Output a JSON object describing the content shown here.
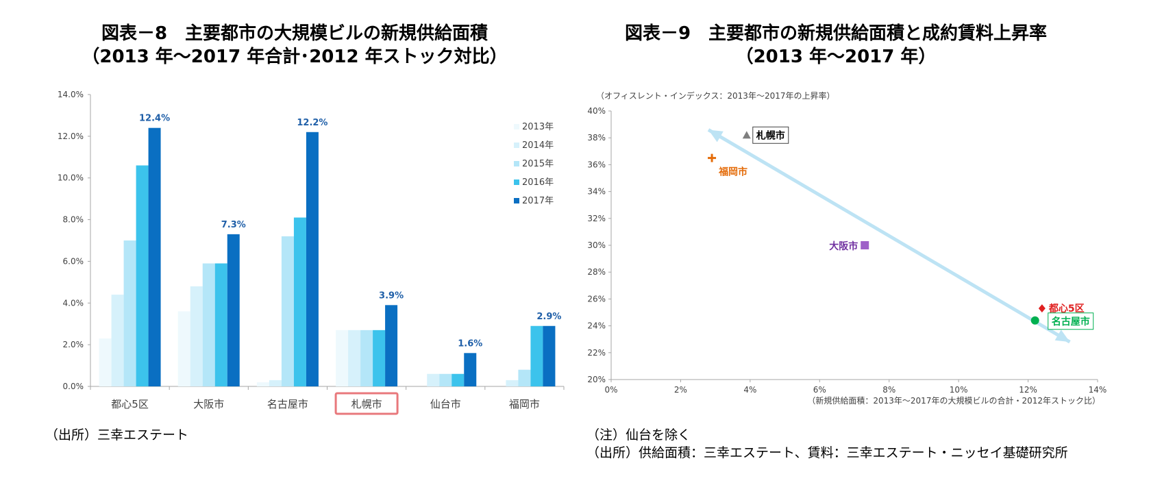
{
  "figures": {
    "left": {
      "title_line1": "図表－8　主要都市の大規模ビルの新規供給面積",
      "title_line2": "（2013 年～2017 年合計･2012 年ストック対比）",
      "source": "（出所）三幸エステート"
    },
    "right": {
      "title_line1": "図表－9　主要都市の新規供給面積と成約賃料上昇率",
      "title_line2": "（2013 年～2017 年）",
      "y_caption": "（オフィスレント・インデックス：2013年～2017年の上昇率）",
      "x_caption": "（新規供給面積：2013年～2017年の大規模ビルの合計・2012年ストック比）",
      "note": "（注）仙台を除く",
      "source": "（出所）供給面積：三幸エステート、賃料：三幸エステート・ニッセイ基礎研究所"
    }
  },
  "chart_data": [
    {
      "type": "bar",
      "title": "図表－8　主要都市の大規模ビルの新規供給面積（2013 年～2017 年合計･2012 年ストック対比）",
      "categories": [
        "都心5区",
        "大阪市",
        "名古屋市",
        "札幌市",
        "仙台市",
        "福岡市"
      ],
      "highlight_category": "札幌市",
      "series": [
        {
          "name": "2013年",
          "color": "#eef9fd",
          "values": [
            2.3,
            3.6,
            0.2,
            2.7,
            0.0,
            0.0
          ]
        },
        {
          "name": "2014年",
          "color": "#d6f1fb",
          "values": [
            4.4,
            4.8,
            0.3,
            2.7,
            0.6,
            0.3
          ]
        },
        {
          "name": "2015年",
          "color": "#b4e6f8",
          "values": [
            7.0,
            5.9,
            7.2,
            2.7,
            0.6,
            0.8
          ]
        },
        {
          "name": "2016年",
          "color": "#3cc3ec",
          "values": [
            10.6,
            5.9,
            8.1,
            2.7,
            0.6,
            2.9
          ]
        },
        {
          "name": "2017年",
          "color": "#0a6fc2",
          "values": [
            12.4,
            7.3,
            12.2,
            3.9,
            1.6,
            2.9
          ]
        }
      ],
      "data_labels": [
        "12.4%",
        "7.3%",
        "12.2%",
        "3.9%",
        "1.6%",
        "2.9%"
      ],
      "ylim": [
        0,
        14
      ],
      "yticks": [
        "0.0%",
        "2.0%",
        "4.0%",
        "6.0%",
        "8.0%",
        "10.0%",
        "12.0%",
        "14.0%"
      ],
      "grid": false,
      "legend": "top-right",
      "label_color": "#1f5fa8"
    },
    {
      "type": "scatter",
      "title": "図表－9　主要都市の新規供給面積と成約賃料上昇率（2013 年～2017 年）",
      "xlim": [
        0,
        14
      ],
      "ylim": [
        20,
        40
      ],
      "xticks": [
        "0%",
        "2%",
        "4%",
        "6%",
        "8%",
        "10%",
        "12%",
        "14%"
      ],
      "yticks": [
        "20%",
        "22%",
        "24%",
        "26%",
        "28%",
        "30%",
        "32%",
        "34%",
        "36%",
        "38%",
        "40%"
      ],
      "grid": false,
      "points": [
        {
          "label": "札幌市",
          "x": 3.9,
          "y": 38.2,
          "marker": "triangle",
          "color": "#7f7f7f",
          "label_color": "#000000",
          "boxed": true
        },
        {
          "label": "福岡市",
          "x": 2.9,
          "y": 36.5,
          "marker": "plus",
          "color": "#e46c0a",
          "label_color": "#e46c0a",
          "boxed": false
        },
        {
          "label": "大阪市",
          "x": 7.3,
          "y": 30.0,
          "marker": "square",
          "color": "#9e61c8",
          "label_color": "#7030a0",
          "boxed": false
        },
        {
          "label": "都心5区",
          "x": 12.4,
          "y": 25.3,
          "marker": "diamond",
          "color": "#e02020",
          "label_color": "#e02020",
          "boxed": false
        },
        {
          "label": "名古屋市",
          "x": 12.2,
          "y": 24.4,
          "marker": "circle",
          "color": "#00b050",
          "label_color": "#00b050",
          "boxed": true
        }
      ],
      "trend_arrow": {
        "from": [
          2.8,
          38.6
        ],
        "to": [
          13.2,
          22.8
        ],
        "color": "#bde3f4"
      }
    }
  ]
}
